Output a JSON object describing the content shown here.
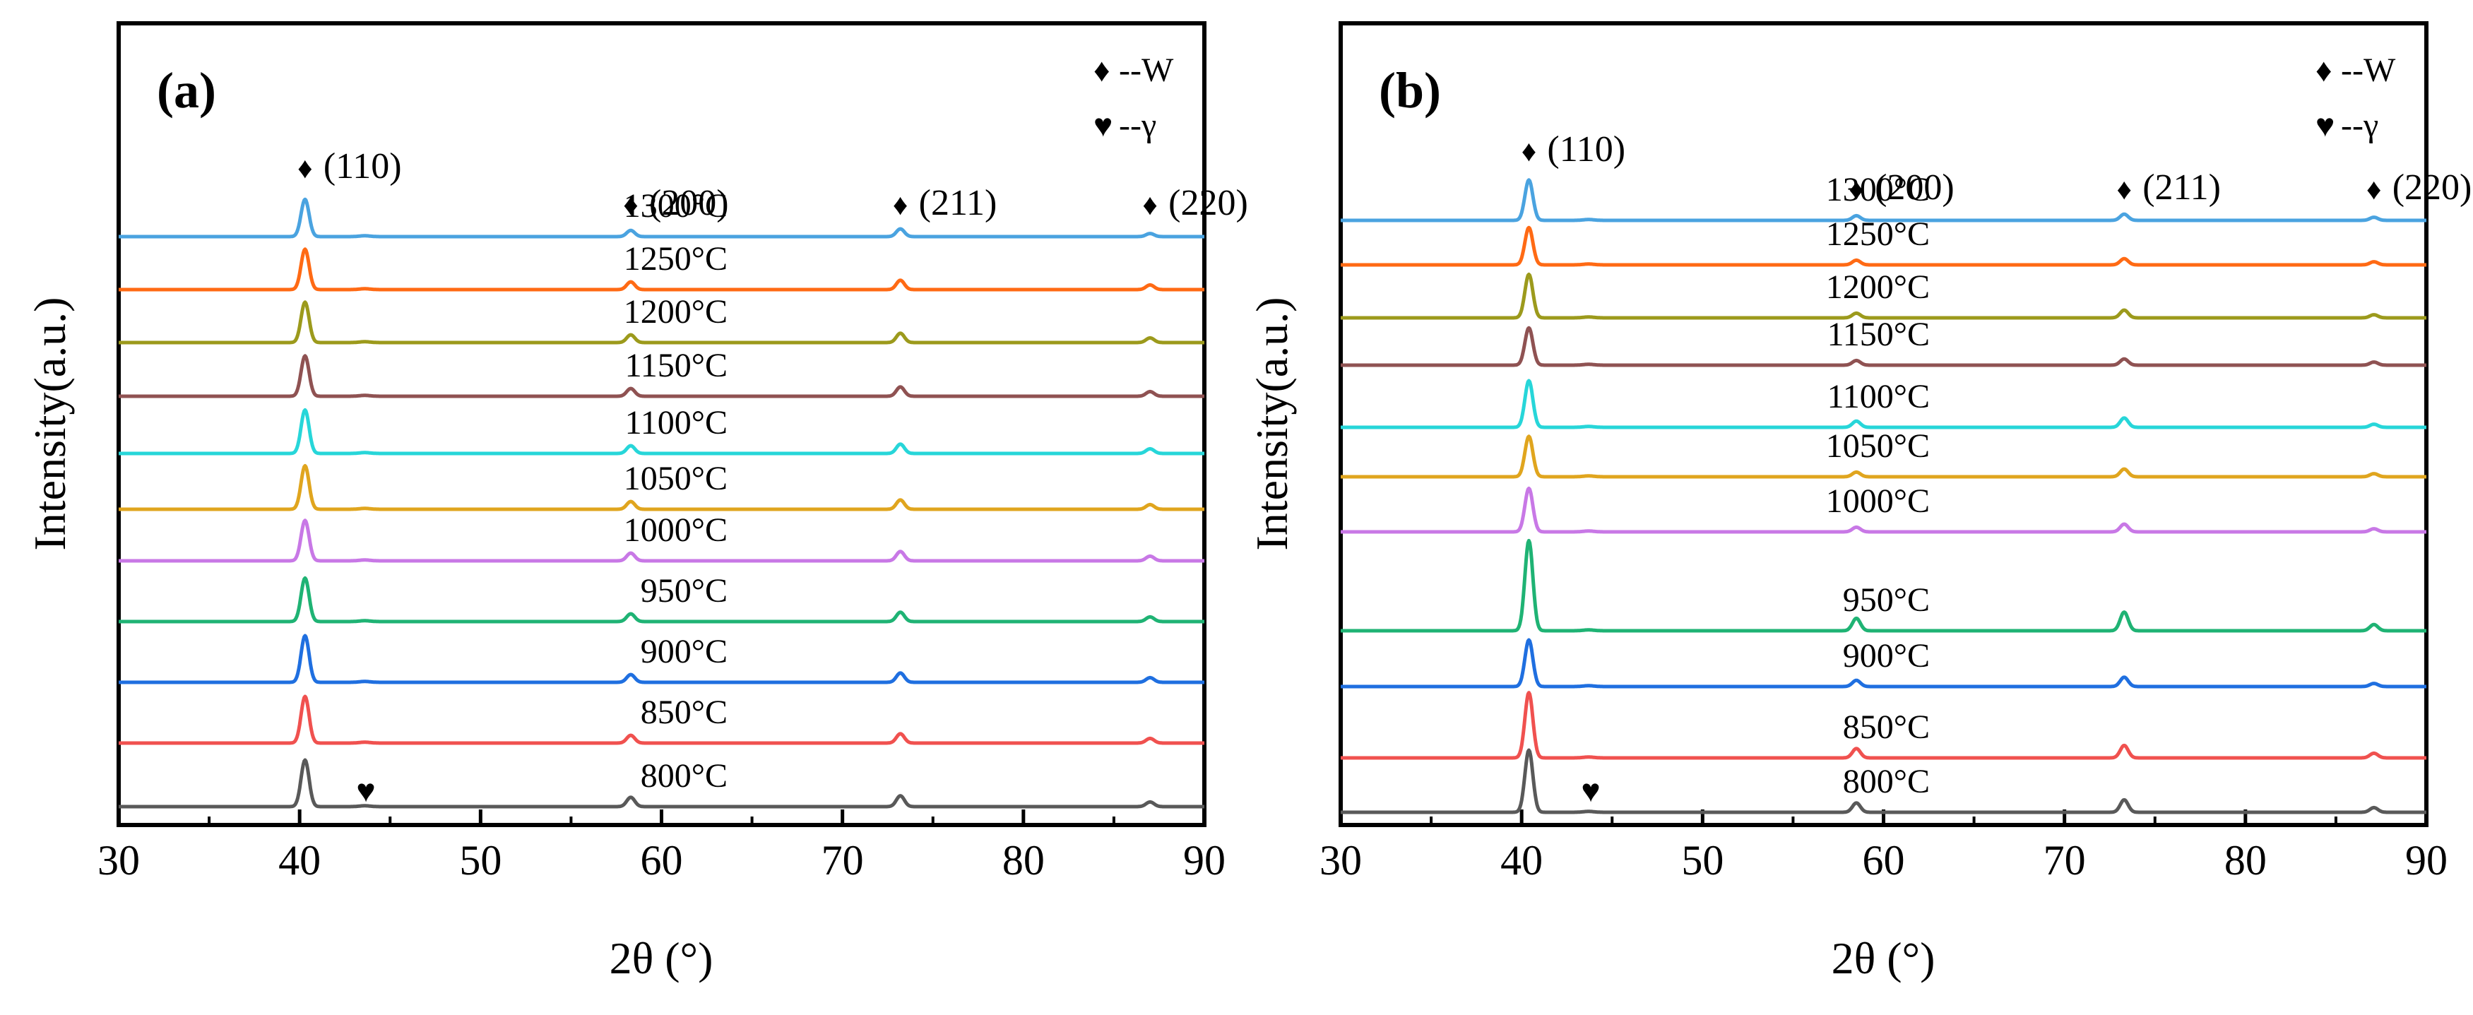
{
  "chart_data": [
    {
      "type": "line",
      "panel_label": "(a)",
      "xlabel": "2θ (°)",
      "ylabel": "Intensity(a.u.)",
      "xlim": [
        30,
        90
      ],
      "xticks": [
        "30",
        "40",
        "50",
        "60",
        "70",
        "80",
        "90"
      ],
      "legend": [
        {
          "symbol": "♦",
          "text": "--W"
        },
        {
          "symbol": "♥",
          "text": "--γ"
        }
      ],
      "peaks": [
        {
          "x": 40.3,
          "label": "(110)",
          "symbol": "♦"
        },
        {
          "x": 58.3,
          "label": "(200)",
          "symbol": "♦"
        },
        {
          "x": 73.2,
          "label": "(211)",
          "symbol": "♦"
        },
        {
          "x": 87.0,
          "label": "(220)",
          "symbol": "♦"
        }
      ],
      "gamma_marker": {
        "x": 43.6,
        "symbol": "♥"
      },
      "series": [
        {
          "name": "800°C",
          "color": "#595959",
          "offset": 0,
          "peak_heights": [
            30,
            6,
            7,
            3
          ]
        },
        {
          "name": "850°C",
          "color": "#f0514f",
          "offset": 1,
          "peak_heights": [
            30,
            5,
            6,
            3
          ]
        },
        {
          "name": "900°C",
          "color": "#1f6fe0",
          "offset": 2,
          "peak_heights": [
            30,
            5,
            6,
            3
          ]
        },
        {
          "name": "950°C",
          "color": "#1fb374",
          "offset": 3,
          "peak_heights": [
            28,
            5,
            6,
            3
          ]
        },
        {
          "name": "1000°C",
          "color": "#c878e6",
          "offset": 4,
          "peak_heights": [
            26,
            5,
            6,
            3
          ]
        },
        {
          "name": "1050°C",
          "color": "#e0a51e",
          "offset": 5,
          "peak_heights": [
            28,
            5,
            6,
            3
          ]
        },
        {
          "name": "1100°C",
          "color": "#27d6d9",
          "offset": 6,
          "peak_heights": [
            28,
            5,
            6,
            3
          ]
        },
        {
          "name": "1150°C",
          "color": "#8f5252",
          "offset": 7,
          "peak_heights": [
            26,
            5,
            6,
            3
          ]
        },
        {
          "name": "1200°C",
          "color": "#9c9a1c",
          "offset": 8,
          "peak_heights": [
            26,
            5,
            6,
            3
          ]
        },
        {
          "name": "1250°C",
          "color": "#ff6a14",
          "offset": 9,
          "peak_heights": [
            26,
            5,
            6,
            3
          ]
        },
        {
          "name": "1300°C",
          "color": "#4aa3e0",
          "offset": 10,
          "peak_heights": [
            24,
            4,
            5,
            2
          ]
        }
      ]
    },
    {
      "type": "line",
      "panel_label": "(b)",
      "xlabel": "2θ (°)",
      "ylabel": "Intensity(a.u.)",
      "xlim": [
        30,
        90
      ],
      "xticks": [
        "30",
        "40",
        "50",
        "60",
        "70",
        "80",
        "90"
      ],
      "legend": [
        {
          "symbol": "♦",
          "text": "--W"
        },
        {
          "symbol": "♥",
          "text": "--γ"
        }
      ],
      "peaks": [
        {
          "x": 40.4,
          "label": "(110)",
          "symbol": "♦"
        },
        {
          "x": 58.5,
          "label": "(200)",
          "symbol": "♦"
        },
        {
          "x": 73.3,
          "label": "(211)",
          "symbol": "♦"
        },
        {
          "x": 87.1,
          "label": "(220)",
          "symbol": "♦"
        }
      ],
      "gamma_marker": {
        "x": 43.7,
        "symbol": "♥"
      },
      "series": [
        {
          "name": "800°C",
          "color": "#595959",
          "offset": 0,
          "peak_heights": [
            40,
            6,
            8,
            3
          ]
        },
        {
          "name": "850°C",
          "color": "#f0514f",
          "offset": 1,
          "peak_heights": [
            42,
            6,
            8,
            3
          ]
        },
        {
          "name": "900°C",
          "color": "#1f6fe0",
          "offset": 2,
          "peak_heights": [
            30,
            4,
            6,
            2
          ]
        },
        {
          "name": "950°C",
          "color": "#1fb374",
          "offset": 3,
          "peak_heights": [
            58,
            8,
            12,
            4
          ]
        },
        {
          "name": "1000°C",
          "color": "#c878e6",
          "offset": 4,
          "peak_heights": [
            28,
            3,
            5,
            2
          ]
        },
        {
          "name": "1050°C",
          "color": "#e0a51e",
          "offset": 5,
          "peak_heights": [
            26,
            3,
            5,
            2
          ]
        },
        {
          "name": "1100°C",
          "color": "#27d6d9",
          "offset": 6,
          "peak_heights": [
            30,
            4,
            6,
            2
          ]
        },
        {
          "name": "1150°C",
          "color": "#8f5252",
          "offset": 7,
          "peak_heights": [
            24,
            3,
            4,
            2
          ]
        },
        {
          "name": "1200°C",
          "color": "#9c9a1c",
          "offset": 8,
          "peak_heights": [
            28,
            3,
            5,
            2
          ]
        },
        {
          "name": "1250°C",
          "color": "#ff6a14",
          "offset": 9,
          "peak_heights": [
            24,
            3,
            4,
            2
          ]
        },
        {
          "name": "1300°C",
          "color": "#4aa3e0",
          "offset": 10,
          "peak_heights": [
            26,
            3,
            4,
            2
          ]
        }
      ]
    }
  ]
}
